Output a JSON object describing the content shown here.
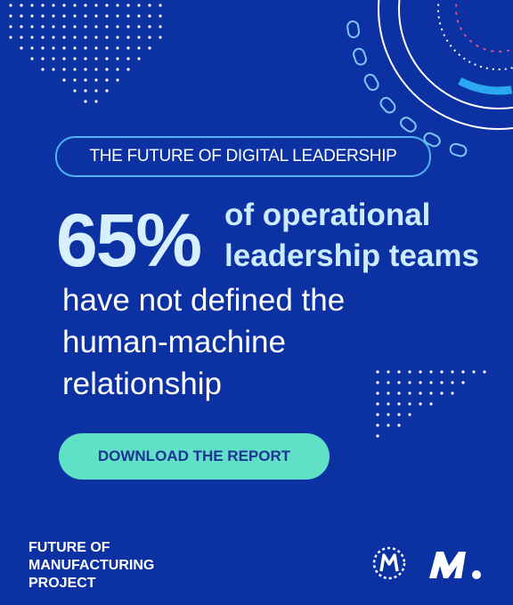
{
  "tag": "THE FUTURE OF DIGITAL LEADERSHIP",
  "stat": "65%",
  "stat_text": [
    "of operational",
    "leadership teams"
  ],
  "body": [
    "have not defined the",
    "human-machine",
    "relationship"
  ],
  "button": "DOWNLOAD THE REPORT",
  "footer": [
    "FUTURE OF",
    "MANUFACTURING",
    "PROJECT"
  ]
}
